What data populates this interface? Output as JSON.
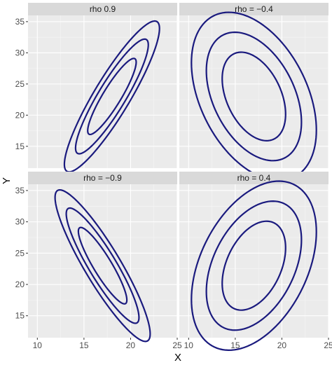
{
  "chart_data": {
    "type": "contour",
    "xlabel": "X",
    "ylabel": "Y",
    "xlim": [
      9,
      25
    ],
    "ylim": [
      11.5,
      36
    ],
    "x_ticks": [
      10,
      15,
      20,
      25
    ],
    "y_ticks": [
      15,
      20,
      25,
      30,
      35
    ],
    "grid": true,
    "colors": {
      "line": "#1a1a7e",
      "panel": "#ebebeb",
      "strip": "#d9d9d9",
      "grid_major": "#ffffff",
      "grid_minor": "#f5f5f5"
    },
    "panels": [
      {
        "label": "rho  0.9",
        "rho": 0.9,
        "center": [
          18,
          23
        ],
        "contours": [
          {
            "sx": 2.6,
            "sy": 6.1
          },
          {
            "sx": 3.9,
            "sy": 9.2
          },
          {
            "sx": 5.1,
            "sy": 12.1
          }
        ]
      },
      {
        "label": "rho = −0.4",
        "rho": -0.4,
        "center": [
          17,
          23
        ],
        "contours": [
          {
            "sx": 3.4,
            "sy": 7.1
          },
          {
            "sx": 5.1,
            "sy": 10.3
          },
          {
            "sx": 6.7,
            "sy": 13.5
          }
        ]
      },
      {
        "label": "rho = −0.9",
        "rho": -0.9,
        "center": [
          17,
          23
        ],
        "contours": [
          {
            "sx": 2.6,
            "sy": 6.1
          },
          {
            "sx": 3.9,
            "sy": 9.2
          },
          {
            "sx": 5.1,
            "sy": 12.1
          }
        ]
      },
      {
        "label": "rho = 0.4",
        "rho": 0.4,
        "center": [
          17,
          23
        ],
        "contours": [
          {
            "sx": 3.4,
            "sy": 7.1
          },
          {
            "sx": 5.1,
            "sy": 10.3
          },
          {
            "sx": 6.7,
            "sy": 13.5
          }
        ]
      }
    ]
  }
}
